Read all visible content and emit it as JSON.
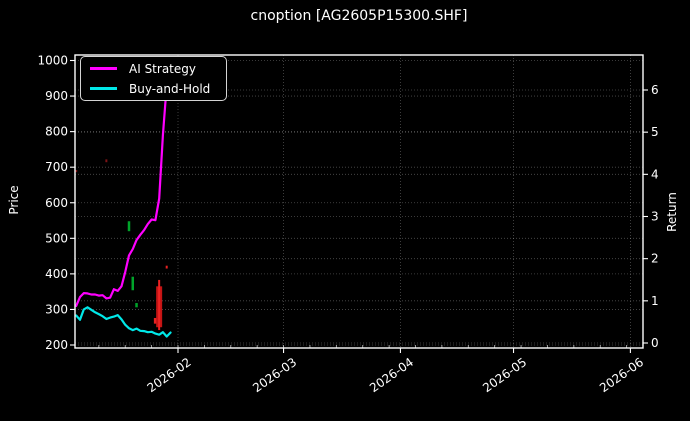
{
  "chart_data": {
    "type": "line",
    "title": "cnoption [AG2605P15300.SHF]",
    "xlabel": "",
    "ylabel_left": "Price",
    "ylabel_right": "Return",
    "background": "#000000",
    "text_color": "#ffffff",
    "grid": "dotted",
    "price_axis": {
      "min": 200,
      "max": 1000,
      "ticks": [
        200,
        300,
        400,
        500,
        600,
        700,
        800,
        900,
        1000
      ]
    },
    "return_axis": {
      "min": 0,
      "max": 6,
      "ticks": [
        0,
        1,
        2,
        3,
        4,
        5,
        6
      ]
    },
    "x_ticks": [
      {
        "label": "2026-02",
        "date": "2026-02-01"
      },
      {
        "label": "2026-03",
        "date": "2026-03-01"
      },
      {
        "label": "2026-04",
        "date": "2026-04-01"
      },
      {
        "label": "2026-05",
        "date": "2026-05-01"
      },
      {
        "label": "2026-06",
        "date": "2026-06-01"
      }
    ],
    "legend": {
      "position": "upper-left",
      "items": [
        {
          "label": "AI Strategy",
          "color": "#ff00ff"
        },
        {
          "label": "Buy-and-Hold",
          "color": "#00e8e8"
        }
      ]
    },
    "dates": [
      "2026-01-05",
      "2026-01-06",
      "2026-01-07",
      "2026-01-08",
      "2026-01-09",
      "2026-01-10",
      "2026-01-11",
      "2026-01-12",
      "2026-01-13",
      "2026-01-14",
      "2026-01-15",
      "2026-01-16",
      "2026-01-17",
      "2026-01-18",
      "2026-01-19",
      "2026-01-20",
      "2026-01-21",
      "2026-01-22",
      "2026-01-23",
      "2026-01-24",
      "2026-01-25",
      "2026-01-26",
      "2026-01-27",
      "2026-01-28",
      "2026-01-29",
      "2026-01-30"
    ],
    "series": [
      {
        "name": "AI Strategy",
        "color": "#ff00ff",
        "axis": "price",
        "values": [
          310,
          335,
          346,
          345,
          342,
          342,
          339,
          340,
          331,
          333,
          357,
          352,
          365,
          405,
          452,
          470,
          495,
          510,
          523,
          540,
          553,
          551,
          612,
          790,
          930,
          950
        ]
      },
      {
        "name": "Buy-and-Hold",
        "color": "#00e8e8",
        "axis": "price",
        "values": [
          283,
          271,
          300,
          306,
          299,
          292,
          287,
          281,
          273,
          277,
          280,
          284,
          272,
          257,
          247,
          242,
          246,
          240,
          239,
          236,
          237,
          232,
          229,
          236,
          224,
          235
        ]
      }
    ],
    "trade_markers": [
      {
        "date": "2026-01-05",
        "low": 686,
        "high": 692,
        "width": 2,
        "color": "#7d1416"
      },
      {
        "date": "2026-01-13",
        "low": 714,
        "high": 722,
        "width": 2,
        "color": "#7d1416"
      },
      {
        "date": "2026-01-19",
        "low": 520,
        "high": 548,
        "width": 2.5,
        "color": "#00a42a"
      },
      {
        "date": "2026-01-20",
        "low": 354,
        "high": 392,
        "width": 2.5,
        "color": "#00a42a"
      },
      {
        "date": "2026-01-21",
        "low": 306,
        "high": 318,
        "width": 2.5,
        "color": "#00a42a"
      },
      {
        "date": "2026-01-26",
        "low": 260,
        "high": 276,
        "width": 3,
        "color": "#e82222"
      },
      {
        "date": "2026-01-27",
        "low": 250,
        "high": 365,
        "width": 6,
        "color": "#c41414"
      },
      {
        "date": "2026-01-27",
        "low": 242,
        "high": 383,
        "width": 2,
        "color": "#ee2222"
      },
      {
        "date": "2026-01-29",
        "low": 415,
        "high": 423,
        "width": 2,
        "color": "#e82222"
      }
    ]
  }
}
